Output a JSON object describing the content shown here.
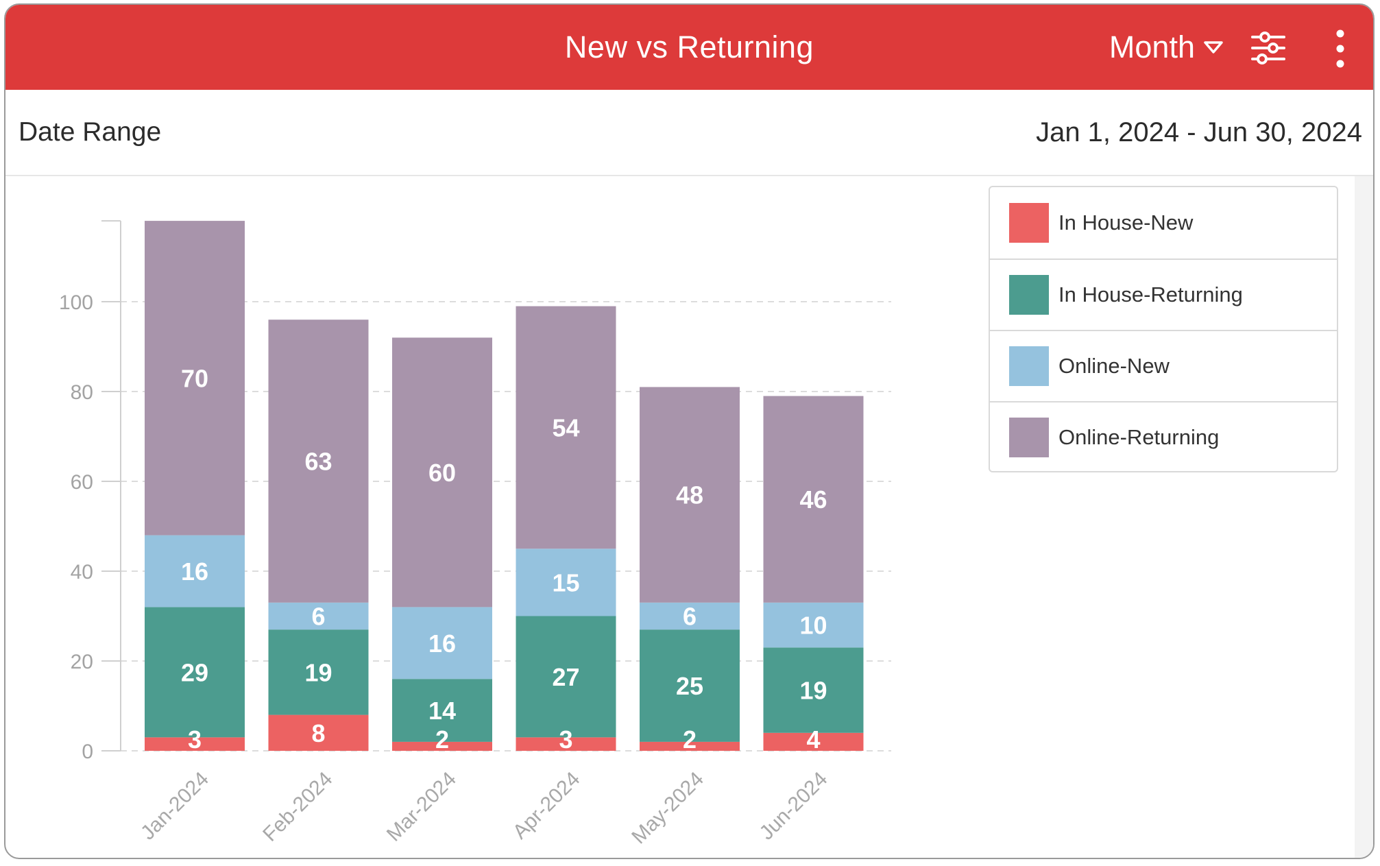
{
  "header": {
    "title": "New vs Returning",
    "period_label": "Month",
    "filter_icon": "sliders-icon",
    "more_icon": "more-vertical-icon",
    "color": "#dd3a3a"
  },
  "date_range": {
    "label": "Date Range",
    "value": "Jan 1, 2024 - Jun 30, 2024"
  },
  "chart_data": {
    "type": "bar",
    "stacked": true,
    "categories": [
      "Jan-2024",
      "Feb-2024",
      "Mar-2024",
      "Apr-2024",
      "May-2024",
      "Jun-2024"
    ],
    "series": [
      {
        "name": "In House-New",
        "color": "#ec6262",
        "values": [
          3,
          8,
          2,
          3,
          2,
          4
        ]
      },
      {
        "name": "In House-Returning",
        "color": "#4c9c8f",
        "values": [
          29,
          19,
          14,
          27,
          25,
          19
        ]
      },
      {
        "name": "Online-New",
        "color": "#95c2de",
        "values": [
          16,
          6,
          16,
          15,
          6,
          10
        ]
      },
      {
        "name": "Online-Returning",
        "color": "#a894ab",
        "values": [
          70,
          63,
          60,
          54,
          48,
          46
        ]
      }
    ],
    "yticks": [
      0,
      20,
      40,
      60,
      80,
      100
    ],
    "ylim": [
      0,
      118
    ],
    "grid": true,
    "legend_position": "top-right",
    "data_labels": true
  }
}
